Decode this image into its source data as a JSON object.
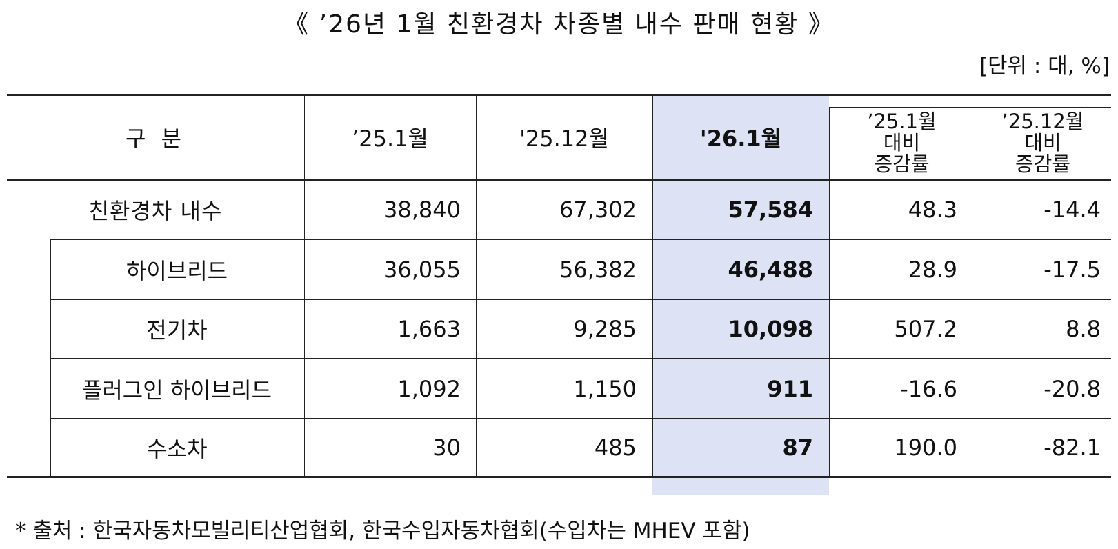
{
  "title": "《 ’26년 1월 친환경차 차종별 내수 판매 현황 》",
  "unit": "[단위 : 대, %]",
  "table": {
    "headers": {
      "category": "구 분",
      "jan25": "’25.1월",
      "dec25": "'25.12월",
      "jan26": "'26.1월",
      "yoy_line1": "’25.1월",
      "yoy_line2": "대비",
      "yoy_line3": "증감률",
      "mom_line1": "’25.12월",
      "mom_line2": "대비",
      "mom_line3": "증감률"
    },
    "rows": [
      {
        "label": "친환경차 내수",
        "jan25": "38,840",
        "dec25": "67,302",
        "jan26": "57,584",
        "yoy": "48.3",
        "mom": "-14.4"
      },
      {
        "label": "하이브리드",
        "jan25": "36,055",
        "dec25": "56,382",
        "jan26": "46,488",
        "yoy": "28.9",
        "mom": "-17.5"
      },
      {
        "label": "전기차",
        "jan25": "1,663",
        "dec25": "9,285",
        "jan26": "10,098",
        "yoy": "507.2",
        "mom": "8.8"
      },
      {
        "label": "플러그인 하이브리드",
        "jan25": "1,092",
        "dec25": "1,150",
        "jan26": "911",
        "yoy": "-16.6",
        "mom": "-20.8"
      },
      {
        "label": "수소차",
        "jan25": "30",
        "dec25": "485",
        "jan26": "87",
        "yoy": "190.0",
        "mom": "-82.1"
      }
    ]
  },
  "source": "* 출처 : 한국자동차모빌리티산업협회, 한국수입자동차협회(수입차는 MHEV 포함)",
  "colors": {
    "highlight_column": "#dde2f5",
    "border": "#222222"
  }
}
